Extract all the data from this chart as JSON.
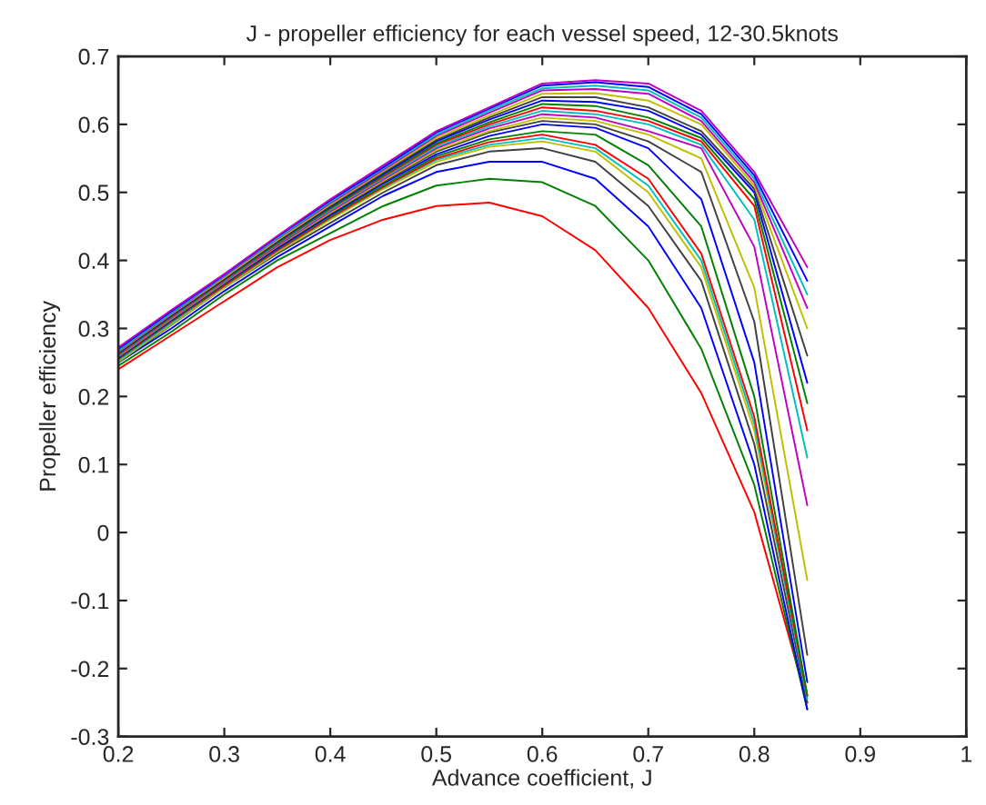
{
  "chart_data": {
    "type": "line",
    "title": "J - propeller efficiency for each vessel speed, 12-30.5knots",
    "xlabel": "Advance coefficient, J",
    "ylabel": "Propeller efficiency",
    "x": [
      0.2,
      0.25,
      0.3,
      0.35,
      0.4,
      0.45,
      0.5,
      0.55,
      0.6,
      0.65,
      0.7,
      0.75,
      0.8,
      0.85
    ],
    "xlim": [
      0.2,
      1
    ],
    "xticks": [
      0.2,
      0.3,
      0.4,
      0.5,
      0.6,
      0.7,
      0.8,
      0.9,
      1
    ],
    "ylim": [
      -0.3,
      0.7
    ],
    "yticks": [
      -0.3,
      -0.2,
      -0.1,
      0,
      0.1,
      0.2,
      0.3,
      0.4,
      0.5,
      0.6,
      0.7
    ],
    "grid": false,
    "marker": "none",
    "line_style": "solid",
    "series": [
      {
        "color": "#ff0000",
        "values": [
          0.24,
          0.29,
          0.34,
          0.39,
          0.43,
          0.46,
          0.48,
          0.485,
          0.465,
          0.415,
          0.33,
          0.205,
          0.03,
          -0.25
        ]
      },
      {
        "color": "#008000",
        "values": [
          0.245,
          0.295,
          0.35,
          0.4,
          0.44,
          0.48,
          0.51,
          0.52,
          0.515,
          0.48,
          0.4,
          0.27,
          0.07,
          -0.26
        ]
      },
      {
        "color": "#0000ff",
        "values": [
          0.25,
          0.3,
          0.355,
          0.405,
          0.45,
          0.495,
          0.53,
          0.545,
          0.545,
          0.52,
          0.45,
          0.33,
          0.1,
          -0.26
        ]
      },
      {
        "color": "#404040",
        "values": [
          0.25,
          0.305,
          0.36,
          0.41,
          0.455,
          0.5,
          0.54,
          0.56,
          0.565,
          0.545,
          0.48,
          0.37,
          0.13,
          -0.25
        ]
      },
      {
        "color": "#bfbf00",
        "values": [
          0.251,
          0.306,
          0.36,
          0.412,
          0.46,
          0.505,
          0.545,
          0.567,
          0.575,
          0.56,
          0.5,
          0.39,
          0.15,
          -0.24
        ]
      },
      {
        "color": "#00bfbf",
        "values": [
          0.253,
          0.308,
          0.362,
          0.414,
          0.462,
          0.507,
          0.548,
          0.57,
          0.58,
          0.565,
          0.51,
          0.4,
          0.16,
          -0.245
        ]
      },
      {
        "color": "#ff0000",
        "values": [
          0.255,
          0.31,
          0.363,
          0.415,
          0.463,
          0.508,
          0.55,
          0.574,
          0.585,
          0.57,
          0.52,
          0.41,
          0.17,
          -0.24
        ]
      },
      {
        "color": "#008000",
        "values": [
          0.256,
          0.311,
          0.365,
          0.417,
          0.465,
          0.51,
          0.553,
          0.578,
          0.59,
          0.585,
          0.54,
          0.45,
          0.2,
          -0.24
        ]
      },
      {
        "color": "#0000ff",
        "values": [
          0.257,
          0.312,
          0.366,
          0.418,
          0.467,
          0.513,
          0.556,
          0.583,
          0.6,
          0.595,
          0.565,
          0.49,
          0.25,
          -0.22
        ]
      },
      {
        "color": "#404040",
        "values": [
          0.258,
          0.313,
          0.367,
          0.42,
          0.469,
          0.515,
          0.56,
          0.588,
          0.605,
          0.6,
          0.575,
          0.53,
          0.31,
          -0.18
        ]
      },
      {
        "color": "#bfbf00",
        "values": [
          0.259,
          0.314,
          0.368,
          0.421,
          0.47,
          0.517,
          0.562,
          0.59,
          0.61,
          0.605,
          0.585,
          0.55,
          0.36,
          -0.07
        ]
      },
      {
        "color": "#bf00bf",
        "values": [
          0.26,
          0.315,
          0.369,
          0.422,
          0.472,
          0.519,
          0.565,
          0.594,
          0.615,
          0.61,
          0.59,
          0.565,
          0.42,
          0.04
        ]
      },
      {
        "color": "#00bfbf",
        "values": [
          0.261,
          0.316,
          0.37,
          0.424,
          0.474,
          0.521,
          0.567,
          0.597,
          0.62,
          0.615,
          0.6,
          0.57,
          0.46,
          0.11
        ]
      },
      {
        "color": "#ff0000",
        "values": [
          0.262,
          0.317,
          0.371,
          0.425,
          0.476,
          0.523,
          0.57,
          0.6,
          0.625,
          0.62,
          0.605,
          0.575,
          0.48,
          0.15
        ]
      },
      {
        "color": "#008000",
        "values": [
          0.263,
          0.318,
          0.372,
          0.426,
          0.477,
          0.525,
          0.572,
          0.603,
          0.63,
          0.627,
          0.61,
          0.58,
          0.49,
          0.19
        ]
      },
      {
        "color": "#0000ff",
        "values": [
          0.264,
          0.319,
          0.373,
          0.428,
          0.479,
          0.527,
          0.575,
          0.607,
          0.635,
          0.633,
          0.62,
          0.585,
          0.5,
          0.22
        ]
      },
      {
        "color": "#404040",
        "values": [
          0.265,
          0.32,
          0.374,
          0.429,
          0.48,
          0.529,
          0.577,
          0.61,
          0.64,
          0.64,
          0.625,
          0.59,
          0.505,
          0.26
        ]
      },
      {
        "color": "#bfbf00",
        "values": [
          0.266,
          0.321,
          0.375,
          0.43,
          0.482,
          0.531,
          0.58,
          0.613,
          0.645,
          0.646,
          0.635,
          0.6,
          0.51,
          0.3
        ]
      },
      {
        "color": "#bf00bf",
        "values": [
          0.267,
          0.322,
          0.377,
          0.432,
          0.484,
          0.533,
          0.583,
          0.617,
          0.65,
          0.652,
          0.645,
          0.605,
          0.515,
          0.33
        ]
      },
      {
        "color": "#00bfbf",
        "values": [
          0.268,
          0.323,
          0.378,
          0.433,
          0.486,
          0.535,
          0.585,
          0.62,
          0.653,
          0.657,
          0.65,
          0.61,
          0.52,
          0.35
        ]
      },
      {
        "color": "#0000ff",
        "values": [
          0.27,
          0.325,
          0.379,
          0.435,
          0.488,
          0.537,
          0.588,
          0.623,
          0.657,
          0.662,
          0.655,
          0.615,
          0.525,
          0.37
        ]
      },
      {
        "color": "#bf00bf",
        "values": [
          0.272,
          0.327,
          0.38,
          0.436,
          0.49,
          0.54,
          0.59,
          0.625,
          0.66,
          0.665,
          0.66,
          0.62,
          0.53,
          0.39
        ]
      }
    ]
  }
}
